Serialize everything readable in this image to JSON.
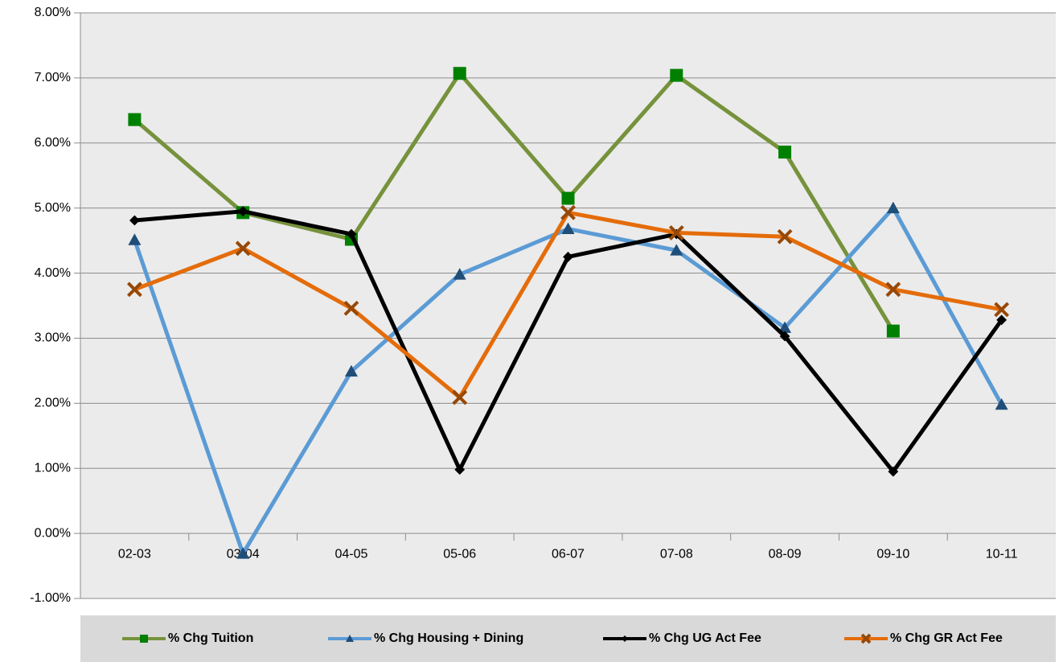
{
  "chart_data": {
    "type": "line",
    "categories": [
      "02-03",
      "03-04",
      "04-05",
      "05-06",
      "06-07",
      "07-08",
      "08-09",
      "09-10",
      "10-11"
    ],
    "series": [
      {
        "name": "% Chg Tuition",
        "color": "#76923c",
        "marker_color": "#008000",
        "marker": "square",
        "values": [
          6.36,
          4.93,
          4.52,
          7.07,
          5.15,
          7.04,
          5.86,
          3.11,
          null
        ]
      },
      {
        "name": "% Chg Housing + Dining",
        "color": "#5b9bd5",
        "marker_color": "#1f4e79",
        "marker": "triangle",
        "values": [
          4.51,
          -0.31,
          2.49,
          3.98,
          4.68,
          4.35,
          3.16,
          5.0,
          1.98
        ]
      },
      {
        "name": "% Chg UG Act Fee",
        "color": "#000000",
        "marker_color": "#000000",
        "marker": "diamond",
        "values": [
          4.81,
          4.95,
          4.6,
          0.98,
          4.25,
          4.6,
          3.03,
          0.95,
          3.28
        ]
      },
      {
        "name": "% Chg GR Act Fee",
        "color": "#e46c0a",
        "marker_color": "#974806",
        "marker": "x",
        "values": [
          3.75,
          4.38,
          3.46,
          2.09,
          4.93,
          4.62,
          4.56,
          3.75,
          3.44
        ]
      }
    ],
    "ylim": [
      -1,
      8
    ],
    "yticks": [
      {
        "value": -1,
        "label": "-1.00%"
      },
      {
        "value": 0,
        "label": "0.00%"
      },
      {
        "value": 1,
        "label": "1.00%"
      },
      {
        "value": 2,
        "label": "2.00%"
      },
      {
        "value": 3,
        "label": "3.00%"
      },
      {
        "value": 4,
        "label": "4.00%"
      },
      {
        "value": 5,
        "label": "5.00%"
      },
      {
        "value": 6,
        "label": "6.00%"
      },
      {
        "value": 7,
        "label": "7.00%"
      },
      {
        "value": 8,
        "label": "8.00%"
      }
    ],
    "grid": true,
    "legend": "bottom"
  }
}
